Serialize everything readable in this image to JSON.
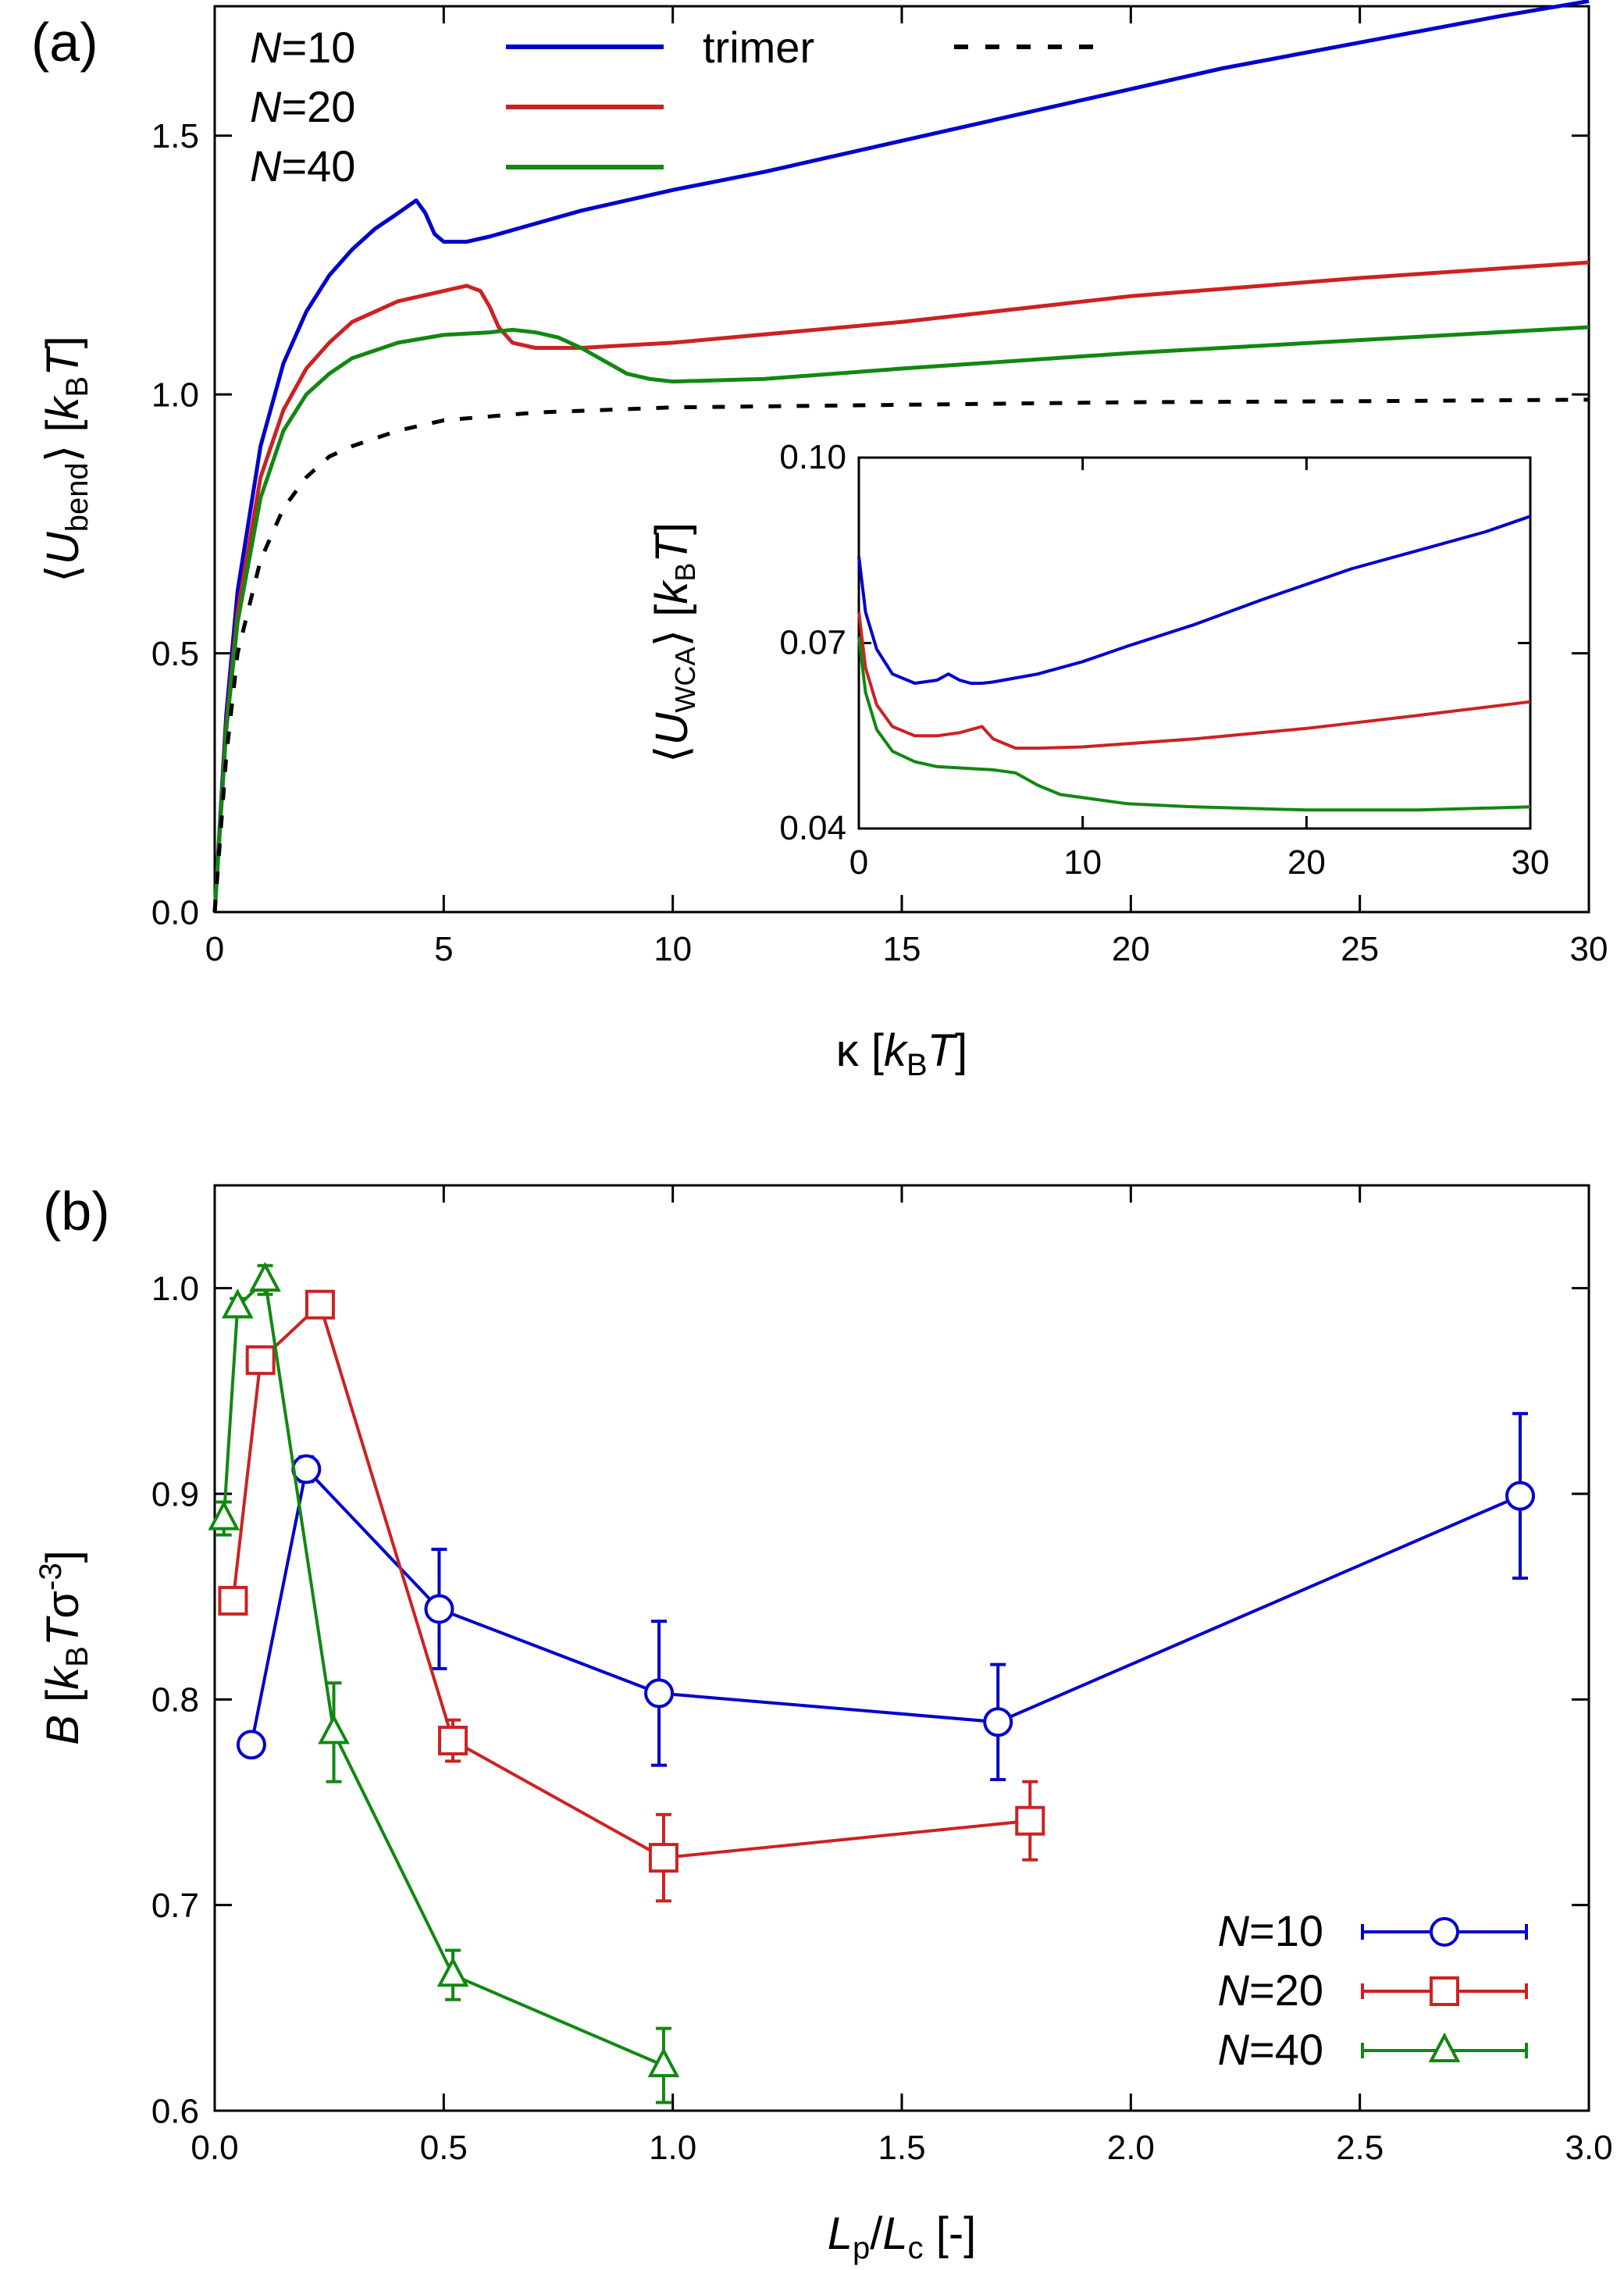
{
  "colors": {
    "N10": "#0000cc",
    "N20": "#cc2222",
    "N40": "#118811",
    "trimer": "#000000"
  },
  "chart_data": [
    {
      "panel": "(a)",
      "type": "line",
      "xlabel": {
        "main": "κ [",
        "italic": "k",
        "sub": "B",
        "italic2": "T",
        "close": "]"
      },
      "ylabel": {
        "open": "⟨",
        "italic": "U",
        "sub": "bend",
        "close": "⟩ [",
        "italic2": "k",
        "sub2": "B",
        "italic3": "T",
        "end": "]"
      },
      "xlim": [
        0,
        30
      ],
      "ylim": [
        0,
        1.75
      ],
      "xticks": [
        "0",
        "5",
        "10",
        "15",
        "20",
        "25",
        "30"
      ],
      "yticks": [
        "0.0",
        "0.5",
        "1.0",
        "1.5"
      ],
      "legend": [
        {
          "prefix": "N",
          "label": "=10"
        },
        {
          "prefix": "N",
          "label": "=20"
        },
        {
          "prefix": "N",
          "label": "=40"
        },
        {
          "prefix": "",
          "label": "trimer"
        }
      ],
      "series": [
        {
          "name": "N=10",
          "x": [
            0,
            0.25,
            0.5,
            1,
            1.5,
            2,
            2.5,
            3,
            3.5,
            4,
            4.4,
            4.6,
            4.8,
            5,
            5.5,
            6,
            7,
            8,
            9,
            10,
            12,
            15,
            18,
            20,
            22,
            25,
            28,
            30
          ],
          "y": [
            0,
            0.38,
            0.62,
            0.9,
            1.06,
            1.16,
            1.23,
            1.28,
            1.32,
            1.35,
            1.375,
            1.35,
            1.31,
            1.295,
            1.295,
            1.305,
            1.33,
            1.355,
            1.375,
            1.395,
            1.43,
            1.49,
            1.55,
            1.59,
            1.63,
            1.68,
            1.73,
            1.76
          ]
        },
        {
          "name": "N=20",
          "x": [
            0,
            0.25,
            0.5,
            1,
            1.5,
            2,
            2.5,
            3,
            4,
            5,
            5.5,
            5.8,
            6,
            6.2,
            6.5,
            7,
            8,
            10,
            15,
            20,
            25,
            30
          ],
          "y": [
            0,
            0.36,
            0.58,
            0.84,
            0.97,
            1.05,
            1.1,
            1.14,
            1.18,
            1.2,
            1.21,
            1.2,
            1.17,
            1.13,
            1.1,
            1.09,
            1.09,
            1.1,
            1.14,
            1.19,
            1.225,
            1.255
          ]
        },
        {
          "name": "N=40",
          "x": [
            0,
            0.25,
            0.5,
            1,
            1.5,
            2,
            2.5,
            3,
            4,
            5,
            6,
            6.5,
            7,
            7.5,
            8,
            8.5,
            9,
            9.5,
            10,
            12,
            15,
            20,
            25,
            30
          ],
          "y": [
            0,
            0.35,
            0.56,
            0.8,
            0.93,
            1.0,
            1.04,
            1.07,
            1.1,
            1.115,
            1.12,
            1.125,
            1.12,
            1.11,
            1.09,
            1.065,
            1.04,
            1.03,
            1.025,
            1.03,
            1.05,
            1.08,
            1.105,
            1.13
          ]
        },
        {
          "name": "trimer",
          "x": [
            0,
            0.25,
            0.5,
            1,
            1.5,
            2,
            2.5,
            3,
            4,
            5,
            7,
            10,
            15,
            20,
            25,
            30
          ],
          "y": [
            0,
            0.3,
            0.5,
            0.68,
            0.78,
            0.84,
            0.88,
            0.9,
            0.93,
            0.95,
            0.965,
            0.975,
            0.98,
            0.985,
            0.987,
            0.99
          ]
        }
      ]
    },
    {
      "panel": "inset",
      "type": "line",
      "ylabel": {
        "open": "⟨",
        "italic": "U",
        "sub": "WCA",
        "close": "⟩ [",
        "italic2": "k",
        "sub2": "B",
        "italic3": "T",
        "end": "]"
      },
      "xlim": [
        0,
        30
      ],
      "ylim": [
        0.04,
        0.1
      ],
      "xticks": [
        "0",
        "10",
        "20",
        "30"
      ],
      "yticks": [
        "0.04",
        "0.07",
        "0.10"
      ],
      "series": [
        {
          "name": "N=10",
          "x": [
            0,
            0.3,
            0.8,
            1.5,
            2.5,
            3.5,
            4,
            4.5,
            5,
            5.5,
            6,
            8,
            10,
            12,
            15,
            18,
            20,
            22,
            25,
            28,
            30
          ],
          "y": [
            0.084,
            0.075,
            0.069,
            0.065,
            0.0635,
            0.064,
            0.065,
            0.064,
            0.0635,
            0.0635,
            0.0637,
            0.065,
            0.067,
            0.0695,
            0.073,
            0.077,
            0.0795,
            0.082,
            0.085,
            0.088,
            0.0905
          ]
        },
        {
          "name": "N=20",
          "x": [
            0,
            0.3,
            0.8,
            1.5,
            2.5,
            3.5,
            4.5,
            5.5,
            6,
            7,
            8,
            10,
            15,
            20,
            25,
            30
          ],
          "y": [
            0.075,
            0.066,
            0.06,
            0.0565,
            0.055,
            0.055,
            0.0555,
            0.0565,
            0.0545,
            0.053,
            0.053,
            0.0532,
            0.0545,
            0.0562,
            0.0583,
            0.0605
          ]
        },
        {
          "name": "N=40",
          "x": [
            0,
            0.3,
            0.8,
            1.5,
            2.5,
            3.5,
            5,
            6,
            7,
            8,
            9,
            10,
            12,
            15,
            20,
            25,
            30
          ],
          "y": [
            0.071,
            0.062,
            0.056,
            0.0525,
            0.0508,
            0.05,
            0.0497,
            0.0495,
            0.049,
            0.047,
            0.0455,
            0.045,
            0.044,
            0.0435,
            0.043,
            0.043,
            0.0435
          ]
        }
      ]
    },
    {
      "panel": "(b)",
      "type": "line",
      "xlabel": {
        "italic": "L",
        "sub": "p",
        "mid": "/",
        "italic2": "L",
        "sub2": "c",
        "close": " [-]"
      },
      "ylabel": {
        "italic": "B",
        "open": " [",
        "italic2": "k",
        "sub": "B",
        "italic3": "T",
        "sigma": "σ",
        "sup": "-3",
        "close": "]"
      },
      "xlim": [
        0,
        3
      ],
      "ylim": [
        0.6,
        1.05
      ],
      "xticks": [
        "0.0",
        "0.5",
        "1.0",
        "1.5",
        "2.0",
        "2.5",
        "3.0"
      ],
      "yticks": [
        "0.6",
        "0.7",
        "0.8",
        "0.9",
        "1.0"
      ],
      "legend": [
        {
          "prefix": "N",
          "label": "=10"
        },
        {
          "prefix": "N",
          "label": "=20"
        },
        {
          "prefix": "N",
          "label": "=40"
        }
      ],
      "series": [
        {
          "name": "N=10",
          "marker": "circle",
          "x": [
            0.08,
            0.2,
            0.49,
            0.97,
            1.71,
            2.85
          ],
          "y": [
            0.778,
            0.912,
            0.844,
            0.803,
            0.789,
            0.899
          ],
          "err": [
            0.004,
            0.006,
            0.029,
            0.035,
            0.028,
            0.04
          ]
        },
        {
          "name": "N=20",
          "marker": "square",
          "x": [
            0.04,
            0.1,
            0.23,
            0.52,
            0.98,
            1.78
          ],
          "y": [
            0.848,
            0.965,
            0.992,
            0.78,
            0.723,
            0.741
          ],
          "err": [
            0.004,
            0.004,
            0.004,
            0.01,
            0.021,
            0.019
          ]
        },
        {
          "name": "N=40",
          "marker": "triangle",
          "x": [
            0.02,
            0.05,
            0.11,
            0.26,
            0.52,
            0.98
          ],
          "y": [
            0.888,
            0.991,
            1.004,
            0.784,
            0.666,
            0.622
          ],
          "err": [
            0.008,
            0.004,
            0.007,
            0.024,
            0.012,
            0.018
          ]
        }
      ]
    }
  ]
}
